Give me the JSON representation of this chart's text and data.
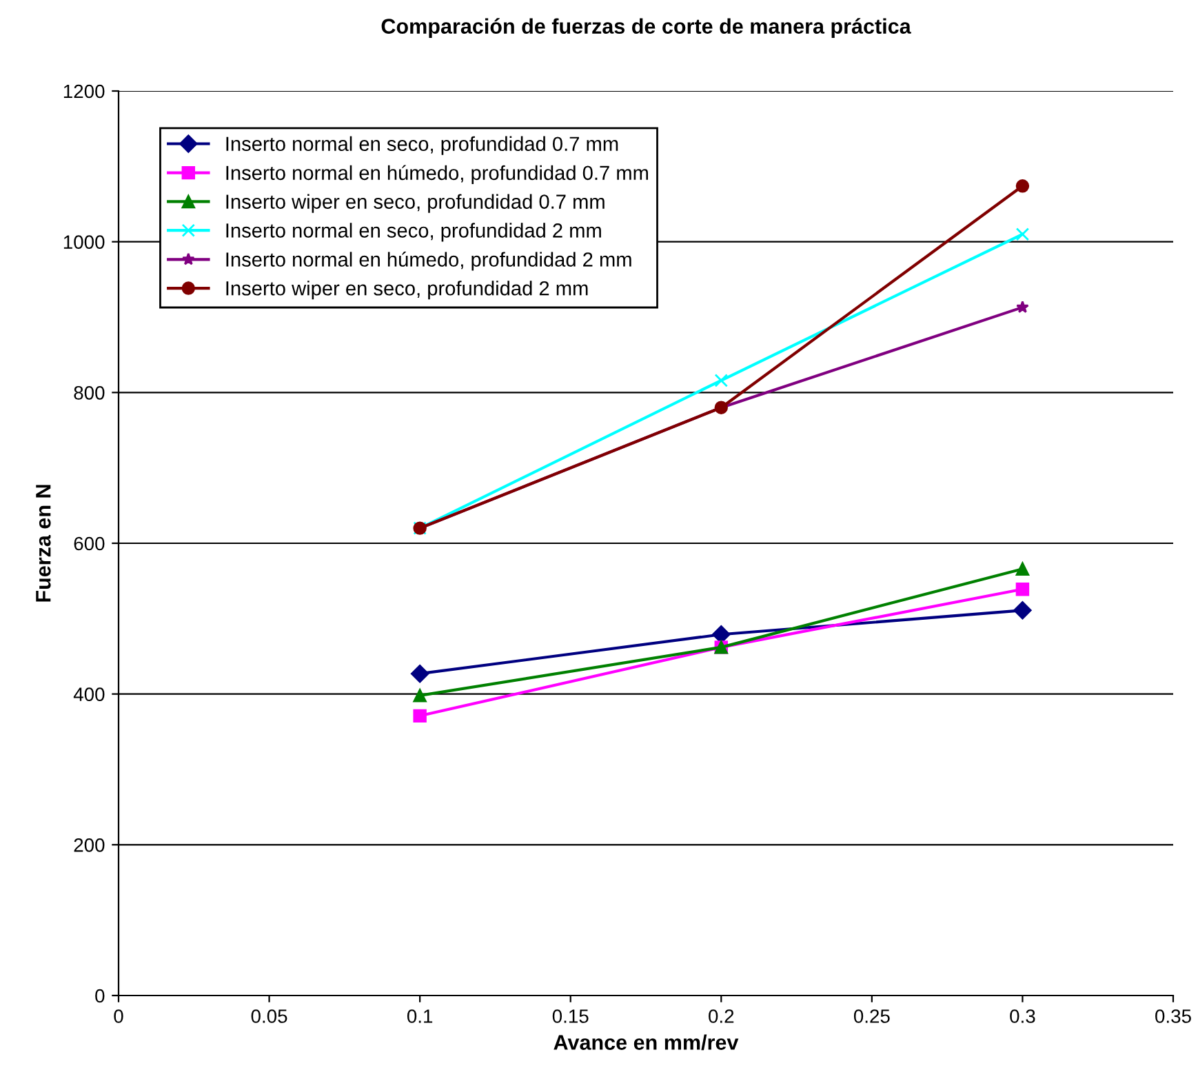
{
  "chart_data": {
    "type": "line",
    "title": "Comparación de fuerzas de corte de manera práctica",
    "xlabel": "Avance en mm/rev",
    "ylabel": "Fuerza en N",
    "x": [
      0.1,
      0.2,
      0.3
    ],
    "series": [
      {
        "name": "Inserto normal en seco, profundidad 0.7 mm",
        "color": "#000080",
        "marker": "diamond",
        "values": [
          427,
          479,
          511
        ]
      },
      {
        "name": "Inserto normal en húmedo, profundidad 0.7 mm",
        "color": "#ff00ff",
        "marker": "square",
        "values": [
          371,
          462,
          539
        ]
      },
      {
        "name": "Inserto wiper en seco, profundidad 0.7 mm",
        "color": "#008000",
        "marker": "triangle",
        "values": [
          398,
          462,
          566
        ]
      },
      {
        "name": "Inserto normal en seco, profundidad 2 mm",
        "color": "#00ffff",
        "marker": "cross",
        "values": [
          620,
          816,
          1010
        ]
      },
      {
        "name": "Inserto normal en húmedo, profundidad 2 mm",
        "color": "#800080",
        "marker": "star",
        "values": [
          620,
          780,
          913
        ]
      },
      {
        "name": "Inserto wiper en seco, profundidad 2 mm",
        "color": "#800000",
        "marker": "circle",
        "values": [
          620,
          780,
          1074
        ]
      }
    ],
    "xlim": [
      0,
      0.35
    ],
    "xticks": [
      0,
      0.05,
      0.1,
      0.15,
      0.2,
      0.25,
      0.3,
      0.35
    ],
    "ylim": [
      0,
      1200
    ],
    "yticks": [
      0,
      200,
      400,
      600,
      800,
      1000,
      1200
    ],
    "grid": "y",
    "legend": "top left",
    "line_style": "solid"
  }
}
